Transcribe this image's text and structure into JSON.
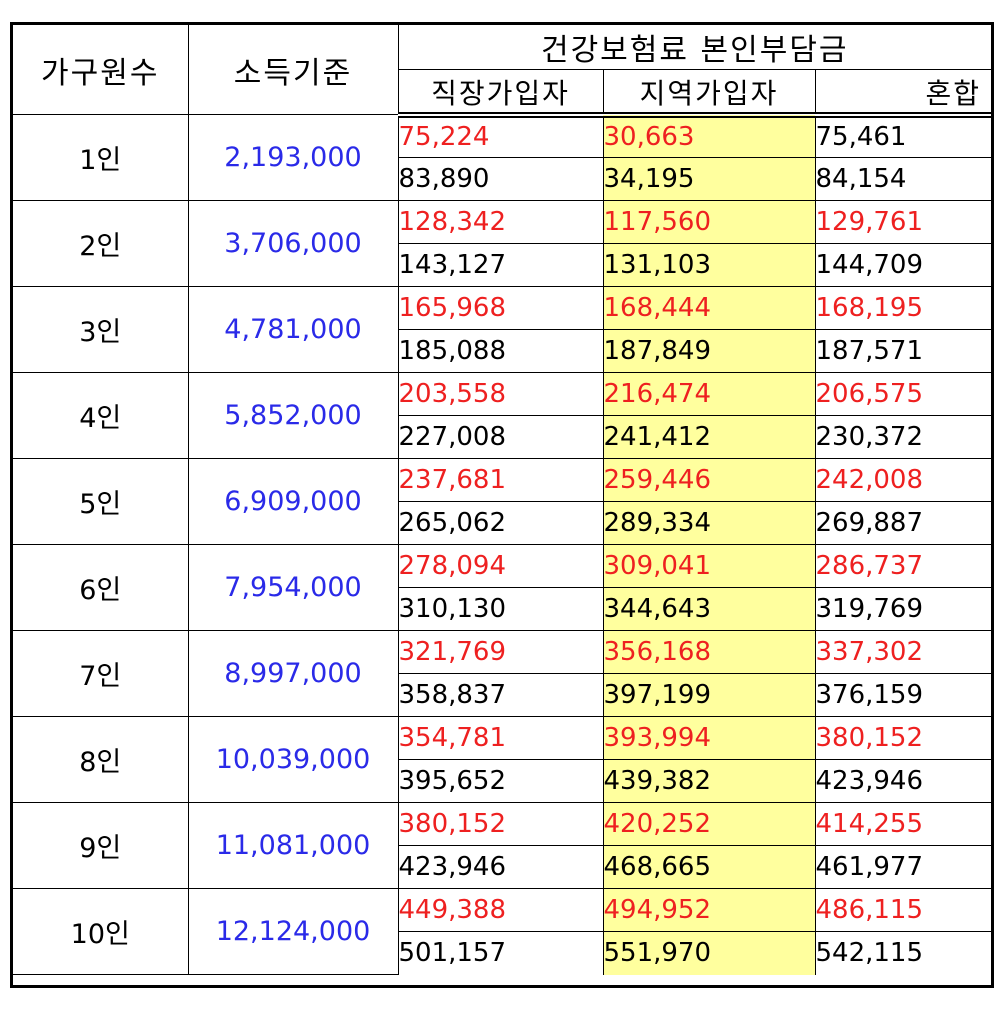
{
  "header": {
    "household_label": "가구원수",
    "income_label": "소득기준",
    "premium_group_label": "건강보험료 본인부담금",
    "employee_label": "직장가입자",
    "regional_label": "지역가입자",
    "mixed_label": "혼합"
  },
  "colors": {
    "income_text": "#2a2ae8",
    "first_line_text": "#ee2020",
    "regional_highlight": "#ffff9e"
  },
  "rows": [
    {
      "members": "1인",
      "income": "2,193,000",
      "line1": {
        "employee": "75,224",
        "regional": "30,663",
        "mixed": "75,461"
      },
      "line2": {
        "employee": "83,890",
        "regional": "34,195",
        "mixed": "84,154"
      },
      "line1_mixed_red": false
    },
    {
      "members": "2인",
      "income": "3,706,000",
      "line1": {
        "employee": "128,342",
        "regional": "117,560",
        "mixed": "129,761"
      },
      "line2": {
        "employee": "143,127",
        "regional": "131,103",
        "mixed": "144,709"
      },
      "line1_mixed_red": true
    },
    {
      "members": "3인",
      "income": "4,781,000",
      "line1": {
        "employee": "165,968",
        "regional": "168,444",
        "mixed": "168,195"
      },
      "line2": {
        "employee": "185,088",
        "regional": "187,849",
        "mixed": "187,571"
      },
      "line1_mixed_red": true
    },
    {
      "members": "4인",
      "income": "5,852,000",
      "line1": {
        "employee": "203,558",
        "regional": "216,474",
        "mixed": "206,575"
      },
      "line2": {
        "employee": "227,008",
        "regional": "241,412",
        "mixed": "230,372"
      },
      "line1_mixed_red": true
    },
    {
      "members": "5인",
      "income": "6,909,000",
      "line1": {
        "employee": "237,681",
        "regional": "259,446",
        "mixed": "242,008"
      },
      "line2": {
        "employee": "265,062",
        "regional": "289,334",
        "mixed": "269,887"
      },
      "line1_mixed_red": true
    },
    {
      "members": "6인",
      "income": "7,954,000",
      "line1": {
        "employee": "278,094",
        "regional": "309,041",
        "mixed": "286,737"
      },
      "line2": {
        "employee": "310,130",
        "regional": "344,643",
        "mixed": "319,769"
      },
      "line1_mixed_red": true
    },
    {
      "members": "7인",
      "income": "8,997,000",
      "line1": {
        "employee": "321,769",
        "regional": "356,168",
        "mixed": "337,302"
      },
      "line2": {
        "employee": "358,837",
        "regional": "397,199",
        "mixed": "376,159"
      },
      "line1_mixed_red": true
    },
    {
      "members": "8인",
      "income": "10,039,000",
      "line1": {
        "employee": "354,781",
        "regional": "393,994",
        "mixed": "380,152"
      },
      "line2": {
        "employee": "395,652",
        "regional": "439,382",
        "mixed": "423,946"
      },
      "line1_mixed_red": true
    },
    {
      "members": "9인",
      "income": "11,081,000",
      "line1": {
        "employee": "380,152",
        "regional": "420,252",
        "mixed": "414,255"
      },
      "line2": {
        "employee": "423,946",
        "regional": "468,665",
        "mixed": "461,977"
      },
      "line1_mixed_red": true
    },
    {
      "members": "10인",
      "income": "12,124,000",
      "line1": {
        "employee": "449,388",
        "regional": "494,952",
        "mixed": "486,115"
      },
      "line2": {
        "employee": "501,157",
        "regional": "551,970",
        "mixed": "542,115"
      },
      "line1_mixed_red": true
    }
  ]
}
